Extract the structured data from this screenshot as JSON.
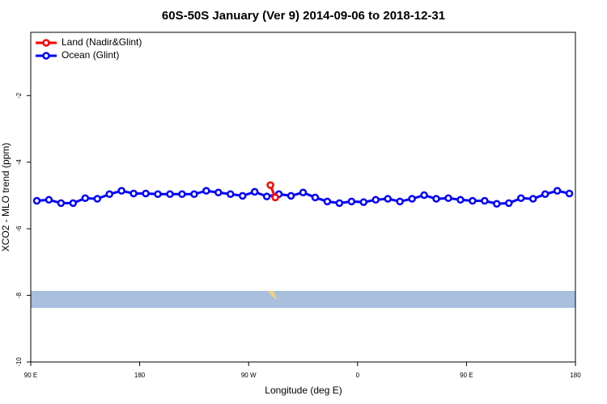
{
  "chart_data": {
    "type": "line",
    "title": "60S-50S January (Ver 9)   2014-09-06 to 2018-12-31",
    "x_label": "Longitude (deg E)",
    "y_label": "XCO2 - MLO trend (ppm)",
    "legend": "top-left",
    "xlim": [
      90,
      540
    ],
    "ylim": [
      -10,
      -0.1
    ],
    "xticks": [
      {
        "value": 90,
        "label": "90 E"
      },
      {
        "value": 180,
        "label": "180"
      },
      {
        "value": 270,
        "label": "90 W"
      },
      {
        "value": 360,
        "label": "0"
      },
      {
        "value": 450,
        "label": "90 E"
      },
      {
        "value": 540,
        "label": "180"
      }
    ],
    "yticks": [
      -10,
      -8,
      -6,
      -4,
      -2
    ],
    "series": [
      {
        "name": "Land (Nadir&Glint)",
        "color": "#ff0000",
        "x": [
          288,
          292
        ],
        "values": [
          -4.69,
          -5.06
        ]
      },
      {
        "name": "Ocean (Glint)",
        "color": "#0000ff",
        "x": [
          95,
          105,
          115,
          125,
          135,
          145,
          155,
          165,
          175,
          185,
          195,
          205,
          215,
          225,
          235,
          245,
          255,
          265,
          275,
          285,
          295,
          305,
          315,
          325,
          335,
          345,
          355,
          365,
          375,
          385,
          395,
          405,
          415,
          425,
          435,
          445,
          455,
          465,
          475,
          485,
          495,
          505,
          515,
          525,
          535
        ],
        "values": [
          -5.16,
          -5.13,
          -5.23,
          -5.23,
          -5.08,
          -5.1,
          -4.96,
          -4.86,
          -4.94,
          -4.94,
          -4.96,
          -4.96,
          -4.96,
          -4.96,
          -4.86,
          -4.91,
          -4.96,
          -5.01,
          -4.89,
          -5.03,
          -4.96,
          -5.01,
          -4.91,
          -5.06,
          -5.18,
          -5.23,
          -5.18,
          -5.2,
          -5.13,
          -5.1,
          -5.18,
          -5.1,
          -4.99,
          -5.1,
          -5.08,
          -5.13,
          -5.16,
          -5.16,
          -5.25,
          -5.23,
          -5.08,
          -5.1,
          -4.96,
          -4.86,
          -4.94
        ]
      }
    ]
  }
}
